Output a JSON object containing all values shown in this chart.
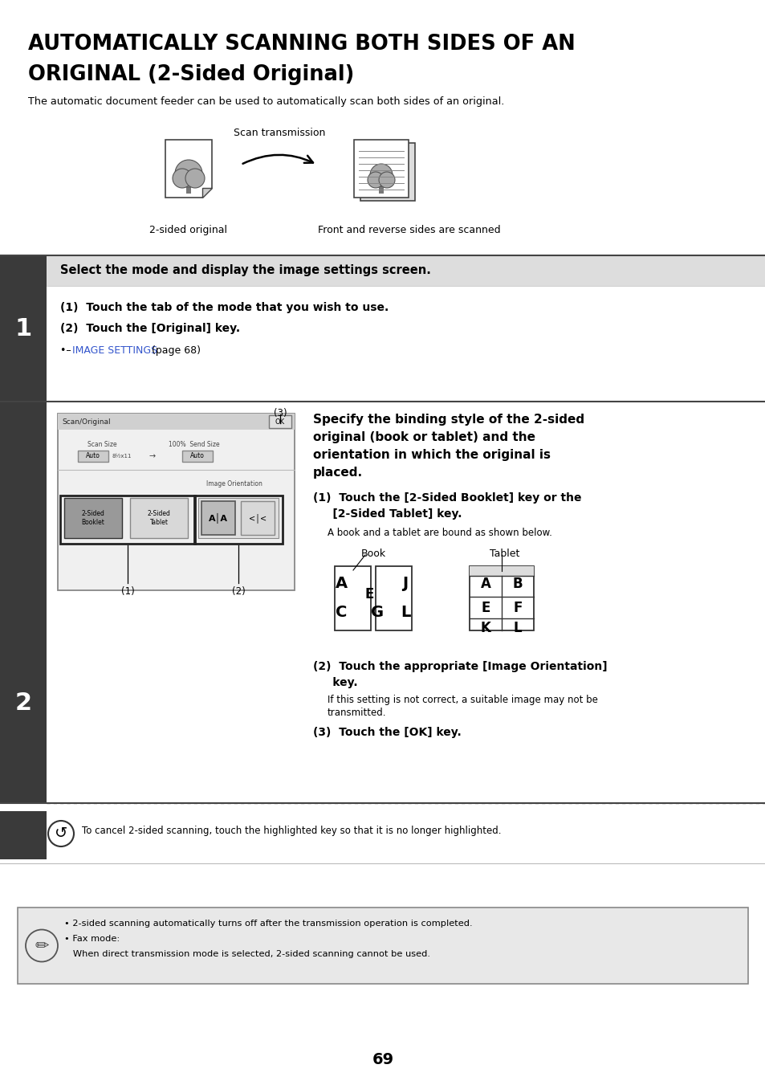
{
  "title_line1": "AUTOMATICALLY SCANNING BOTH SIDES OF AN",
  "title_line2": "ORIGINAL (2-Sided Original)",
  "subtitle": "The automatic document feeder can be used to automatically scan both sides of an original.",
  "scan_transmission_label": "Scan transmission",
  "two_sided_label": "2-sided original",
  "front_reverse_label": "Front and reverse sides are scanned",
  "step1_header": "Select the mode and display the image settings screen.",
  "step1_1": "(1)  Touch the tab of the mode that you wish to use.",
  "step1_2": "(2)  Touch the [Original] key.",
  "step1_link_prefix": "•– ",
  "step1_link_text": "IMAGE SETTINGS",
  "step1_link_suffix": " (page 68)",
  "step2_header_l1": "Specify the binding style of the 2-sided",
  "step2_header_l2": "original (book or tablet) and the",
  "step2_header_l3": "orientation in which the original is",
  "step2_header_l4": "placed.",
  "step2_1a": "(1)  Touch the [2-Sided Booklet] key or the",
  "step2_1b": "     [2-Sided Tablet] key.",
  "step2_1_sub": "A book and a tablet are bound as shown below.",
  "book_label": "Book",
  "tablet_label": "Tablet",
  "step2_2a": "(2)  Touch the appropriate [Image Orientation]",
  "step2_2b": "     key.",
  "step2_2_sub1": "If this setting is not correct, a suitable image may not be",
  "step2_2_sub2": "transmitted.",
  "step2_3": "(3)  Touch the [OK] key.",
  "cancel_note": "To cancel 2-sided scanning, touch the highlighted key so that it is no longer highlighted.",
  "note1": "• 2-sided scanning automatically turns off after the transmission operation is completed.",
  "note2": "• Fax mode:",
  "note3": "   When direct transmission mode is selected, 2-sided scanning cannot be used.",
  "page_number": "69",
  "bg_color": "#ffffff",
  "dark_bar": "#3a3a3a",
  "link_color": "#3355cc",
  "note_bg": "#e8e8e8",
  "header_bg": "#dddddd"
}
